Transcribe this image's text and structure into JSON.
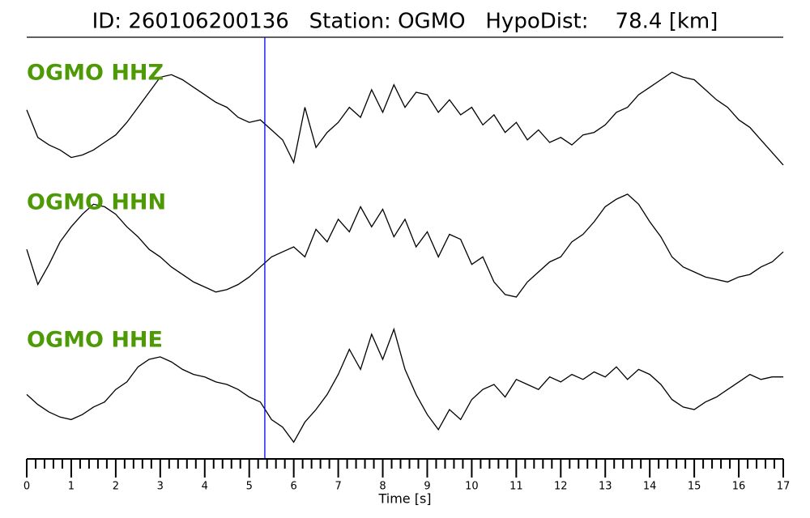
{
  "chart_data": {
    "type": "seismogram",
    "title": "ID: 260106200136   Station: OGMO   HypoDist:    78.4 [km]",
    "xlabel": "Time [s]",
    "x": [
      0,
      0.25,
      0.5,
      0.75,
      1,
      1.25,
      1.5,
      1.75,
      2,
      2.25,
      2.5,
      2.75,
      3,
      3.25,
      3.5,
      3.75,
      4,
      4.25,
      4.5,
      4.75,
      5,
      5.25,
      5.5,
      5.75,
      6,
      6.25,
      6.5,
      6.75,
      7,
      7.25,
      7.5,
      7.75,
      8,
      8.25,
      8.5,
      8.75,
      9,
      9.25,
      9.5,
      9.75,
      10,
      10.25,
      10.5,
      10.75,
      11,
      11.25,
      11.5,
      11.75,
      12,
      12.25,
      12.5,
      12.75,
      13,
      13.25,
      13.5,
      13.75,
      14,
      14.25,
      14.5,
      14.75,
      15,
      15.25,
      15.5,
      15.75,
      16,
      16.25,
      16.5,
      16.75,
      17
    ],
    "xlim": [
      0,
      17
    ],
    "xticks": [
      0,
      1,
      2,
      3,
      4,
      5,
      6,
      7,
      8,
      9,
      10,
      11,
      12,
      13,
      14,
      15,
      16,
      17
    ],
    "xminor": 5,
    "ylim": [
      -1.3,
      1.3
    ],
    "label_color": "#4e9a06",
    "pick": 5.35,
    "pick_color": "#0000ff",
    "series": [
      {
        "name": "OGMO HHZ",
        "color": "#000000",
        "values": [
          0.15,
          -0.4,
          -0.55,
          -0.65,
          -0.8,
          -0.75,
          -0.65,
          -0.5,
          -0.35,
          -0.1,
          0.2,
          0.5,
          0.8,
          0.85,
          0.75,
          0.6,
          0.45,
          0.3,
          0.2,
          0.0,
          -0.1,
          -0.05,
          -0.25,
          -0.45,
          -0.9,
          0.2,
          -0.6,
          -0.3,
          -0.1,
          0.2,
          0.0,
          0.55,
          0.1,
          0.65,
          0.2,
          0.5,
          0.45,
          0.1,
          0.35,
          0.05,
          0.2,
          -0.15,
          0.05,
          -0.3,
          -0.1,
          -0.45,
          -0.25,
          -0.5,
          -0.4,
          -0.55,
          -0.35,
          -0.3,
          -0.15,
          0.1,
          0.2,
          0.45,
          0.6,
          0.75,
          0.9,
          0.8,
          0.75,
          0.55,
          0.35,
          0.2,
          -0.05,
          -0.2,
          -0.45,
          -0.7,
          -0.95
        ]
      },
      {
        "name": "OGMO HHN",
        "color": "#000000",
        "values": [
          -0.05,
          -0.75,
          -0.35,
          0.1,
          0.4,
          0.65,
          0.85,
          0.8,
          0.65,
          0.4,
          0.2,
          -0.05,
          -0.2,
          -0.4,
          -0.55,
          -0.7,
          -0.8,
          -0.9,
          -0.85,
          -0.75,
          -0.6,
          -0.4,
          -0.2,
          -0.1,
          0.0,
          -0.2,
          0.35,
          0.1,
          0.55,
          0.3,
          0.8,
          0.4,
          0.75,
          0.2,
          0.55,
          0.0,
          0.3,
          -0.2,
          0.25,
          0.15,
          -0.35,
          -0.2,
          -0.7,
          -0.95,
          -1.0,
          -0.7,
          -0.5,
          -0.3,
          -0.2,
          0.1,
          0.25,
          0.5,
          0.8,
          0.95,
          1.05,
          0.85,
          0.5,
          0.2,
          -0.2,
          -0.4,
          -0.5,
          -0.6,
          -0.65,
          -0.7,
          -0.6,
          -0.55,
          -0.4,
          -0.3,
          -0.1
        ]
      },
      {
        "name": "OGMO HHE",
        "color": "#000000",
        "values": [
          -0.2,
          -0.4,
          -0.55,
          -0.65,
          -0.7,
          -0.6,
          -0.45,
          -0.35,
          -0.1,
          0.05,
          0.35,
          0.5,
          0.55,
          0.45,
          0.3,
          0.2,
          0.15,
          0.05,
          0.0,
          -0.1,
          -0.25,
          -0.35,
          -0.7,
          -0.85,
          -1.15,
          -0.75,
          -0.5,
          -0.2,
          0.2,
          0.7,
          0.3,
          1.0,
          0.5,
          1.1,
          0.3,
          -0.2,
          -0.6,
          -0.9,
          -0.5,
          -0.7,
          -0.3,
          -0.1,
          0.0,
          -0.25,
          0.1,
          0.0,
          -0.1,
          0.15,
          0.05,
          0.2,
          0.1,
          0.25,
          0.15,
          0.35,
          0.1,
          0.3,
          0.2,
          0.0,
          -0.3,
          -0.45,
          -0.5,
          -0.35,
          -0.25,
          -0.1,
          0.05,
          0.2,
          0.1,
          0.15,
          0.15
        ]
      }
    ]
  }
}
